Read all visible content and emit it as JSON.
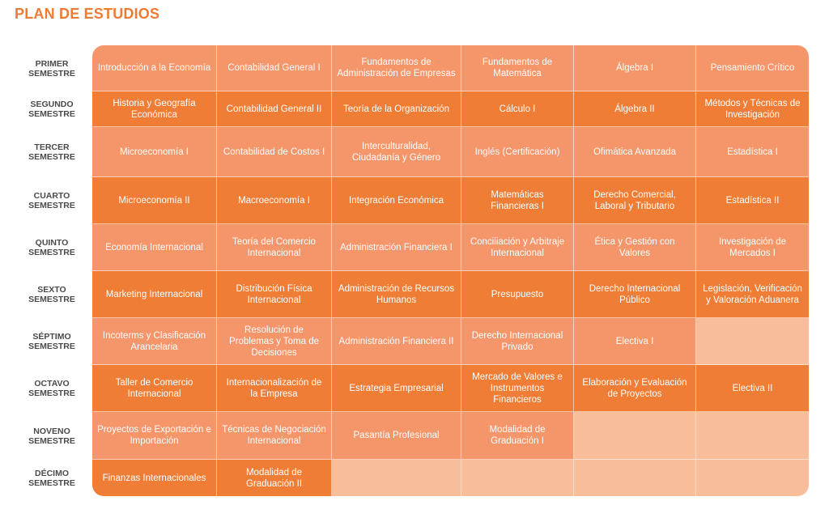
{
  "title": "PLAN DE ESTUDIOS",
  "semesters": [
    {
      "line1": "PRIMER",
      "line2": "SEMESTRE",
      "courses": [
        "Introducción a la Economía",
        "Contabilidad General I",
        "Fundamentos de Administración de Empresas",
        "Fundamentos de Matemática",
        "Álgebra I",
        "Pensamiento Crítico"
      ]
    },
    {
      "line1": "SEGUNDO",
      "line2": "SEMESTRE",
      "courses": [
        "Historia y Geografía Económica",
        "Contabilidad General II",
        "Teoría de la Organización",
        "Cálculo I",
        "Álgebra II",
        "Métodos y Técnicas de Investigación"
      ]
    },
    {
      "line1": "TERCER",
      "line2": "SEMESTRE",
      "courses": [
        "Microeconomía I",
        "Contabilidad de Costos I",
        "Interculturalidad, Ciudadanía y Género",
        "Inglés (Certificación)",
        "Ofimática Avanzada",
        "Estadística I"
      ]
    },
    {
      "line1": "CUARTO",
      "line2": "SEMESTRE",
      "courses": [
        "Microeconomía II",
        "Macroeconomía I",
        "Integración Económica",
        "Matemáticas Financieras I",
        "Derecho Comercial, Laboral y Tributario",
        "Estadística II"
      ]
    },
    {
      "line1": "QUINTO",
      "line2": "SEMESTRE",
      "courses": [
        "Economía Internacional",
        "Teoría del Comercio Internacional",
        "Administración Financiera I",
        "Conciliación y Arbitraje Internacional",
        "Ética y Gestión con Valores",
        "Investigación de Mercados I"
      ]
    },
    {
      "line1": "SEXTO",
      "line2": "SEMESTRE",
      "courses": [
        "Marketing Internacional",
        "Distribución Física Internacional",
        "Administración de Recursos Humanos",
        "Presupuesto",
        "Derecho Internacional Público",
        "Legislación, Verificación y Valoración Aduanera"
      ]
    },
    {
      "line1": "SÉPTIMO",
      "line2": "SEMESTRE",
      "courses": [
        "Incoterms y Clasificación Arancelaria",
        "Resolución de Problemas y Toma de Decisiones",
        "Administración Financiera II",
        "Derecho Internacional Privado",
        "Electiva I",
        ""
      ]
    },
    {
      "line1": "OCTAVO",
      "line2": "SEMESTRE",
      "courses": [
        "Taller de Comercio Internacional",
        "Internacionalización de la Empresa",
        "Estrategia Empresarial",
        "Mercado de Valores e Instrumentos Financieros",
        "Elaboración y Evaluación de Proyectos",
        "Electiva II"
      ]
    },
    {
      "line1": "NOVENO",
      "line2": "SEMESTRE",
      "courses": [
        "Proyectos de Exportación e Importación",
        "Técnicas de Negociación Internacional",
        "Pasantía Profesional",
        "Modalidad de Graduación I",
        "",
        ""
      ]
    },
    {
      "line1": "DÉCIMO",
      "line2": "SEMESTRE",
      "courses": [
        "Finanzas Internacionales",
        "Modalidad de Graduación II",
        "",
        "",
        "",
        ""
      ]
    }
  ],
  "colors": {
    "title": "#ee7b33",
    "row_light": "#f5956a",
    "row_dark": "#f07d36",
    "empty_cell": "#f8bd99",
    "label_text": "#4a4a4a"
  }
}
